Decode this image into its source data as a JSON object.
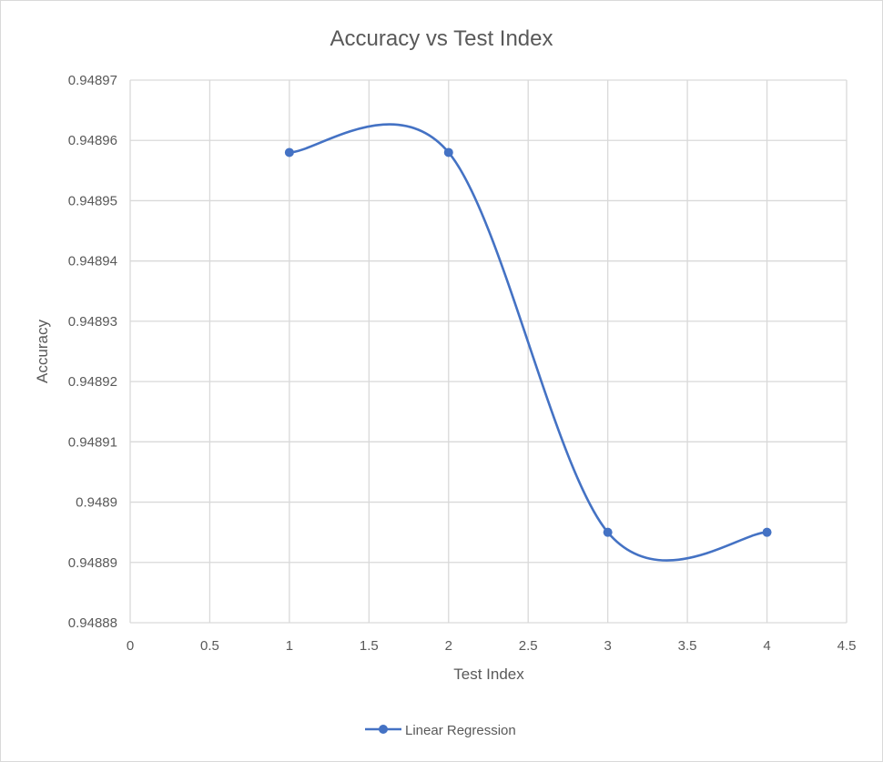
{
  "chart_data": {
    "type": "line",
    "title": "Accuracy vs Test Index",
    "xlabel": "Test Index",
    "ylabel": "Accuracy",
    "xlim": [
      0,
      4.5
    ],
    "ylim": [
      0.94888,
      0.94897
    ],
    "x_ticks": [
      "0",
      "0.5",
      "1",
      "1.5",
      "2",
      "2.5",
      "3",
      "3.5",
      "4",
      "4.5"
    ],
    "y_ticks": [
      "0.94888",
      "0.94889",
      "0.9489",
      "0.94891",
      "0.94892",
      "0.94893",
      "0.94894",
      "0.94895",
      "0.94896",
      "0.94897"
    ],
    "grid": true,
    "smooth": true,
    "legend": "bottom",
    "series": [
      {
        "name": "Linear Regression",
        "color": "#4472c4",
        "marker": "circle",
        "x": [
          1,
          2,
          3,
          4
        ],
        "y": [
          0.948958,
          0.948958,
          0.948895,
          0.948895
        ]
      }
    ]
  }
}
